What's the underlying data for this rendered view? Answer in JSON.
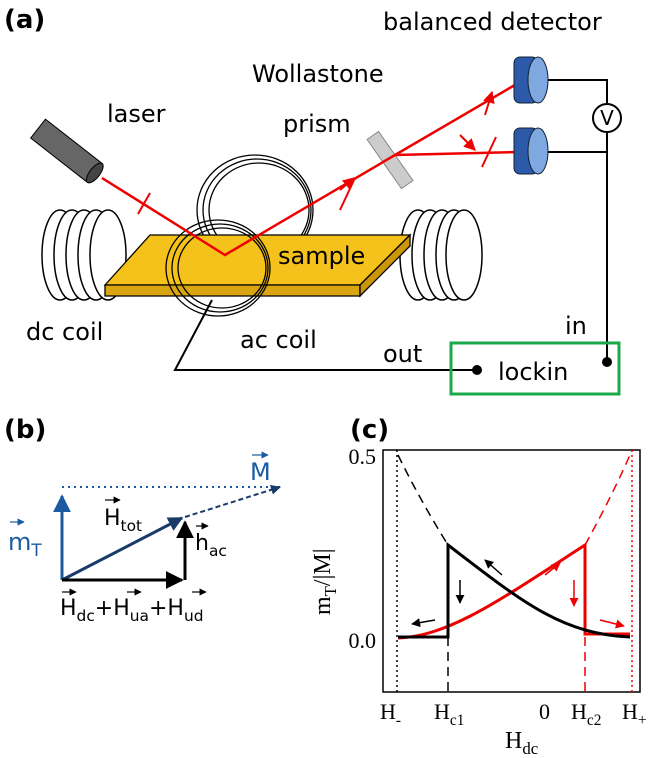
{
  "panel_a": {
    "label": "(a)",
    "balanced_detector": "balanced detector",
    "wollastone": "Wollastone",
    "prism": "prism",
    "laser": "laser",
    "sample": "sample",
    "dc_coil": "dc coil",
    "ac_coil": "ac coil",
    "in": "in",
    "out": "out",
    "lockin": "lockin",
    "voltmeter": "V"
  },
  "panel_b": {
    "label": "(b)",
    "m_t": {
      "base": "m",
      "sub": "T"
    },
    "magnetization": "M",
    "h_tot": {
      "base": "H",
      "sub": "tot"
    },
    "h_ac": {
      "base": "h",
      "sub": "ac"
    },
    "sum": [
      {
        "base": "H",
        "sub": "dc"
      },
      {
        "base": "+H",
        "sub": "ua"
      },
      {
        "base": "+H",
        "sub": "ud"
      }
    ]
  },
  "panel_c": {
    "label": "(c)",
    "y_label": {
      "base": "m",
      "sub": "T",
      "rest": "/|M|"
    },
    "x_label": {
      "base": "H",
      "sub": "dc"
    },
    "y_ticks": [
      "0.5",
      "0.0"
    ],
    "x_ticks": [
      {
        "base": "H",
        "sub": "-"
      },
      {
        "base": "H",
        "sub": "c1"
      },
      {
        "base": "0",
        "sub": ""
      },
      {
        "base": "H",
        "sub": "c2"
      },
      {
        "base": "H",
        "sub": "+"
      }
    ]
  }
}
